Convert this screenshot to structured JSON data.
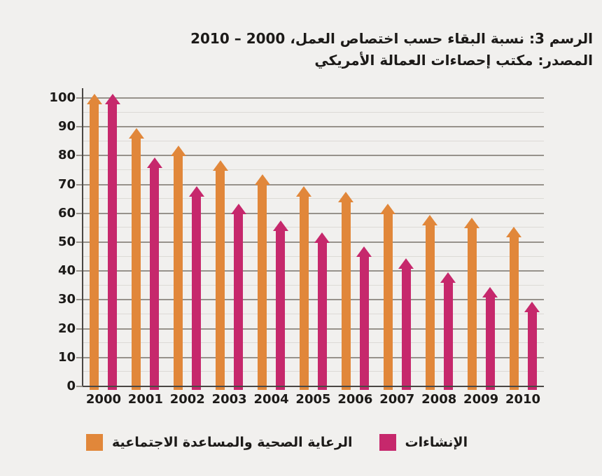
{
  "title": "الرسم 3: نسبة البقاء حسب اختصاص العمل، 2000 – 2010",
  "source": "المصدر: مكتب إحصاءات العمالة الأمريكي",
  "chart_data": {
    "type": "bar",
    "bar_style": "arrow",
    "title": "الرسم 3: نسبة البقاء حسب اختصاص العمل، 2000 – 2010",
    "subtitle": "المصدر: مكتب إحصاءات العمالة الأمريكي",
    "categories": [
      "2000",
      "2001",
      "2002",
      "2003",
      "2004",
      "2005",
      "2006",
      "2007",
      "2008",
      "2009",
      "2010"
    ],
    "series": [
      {
        "name": "الرعاية الصحية والمساعدة الاجتماعية",
        "color": "#E1873A",
        "values": [
          100,
          88,
          82,
          77,
          72,
          68,
          66,
          62,
          58,
          57,
          54
        ]
      },
      {
        "name": "الإنشاءات",
        "color": "#C6286C",
        "values": [
          100,
          78,
          68,
          62,
          56,
          52,
          47,
          43,
          38,
          33,
          28
        ]
      }
    ],
    "xlabel": "",
    "ylabel": "",
    "ylim": [
      0,
      100
    ],
    "yticks": [
      100,
      90,
      80,
      70,
      60,
      50,
      40,
      30,
      20,
      10,
      0
    ],
    "ytick_step": 10,
    "minor_grid_step": 5,
    "grid": true,
    "legend_position": "bottom"
  },
  "colors": {
    "background": "#F1F0EE",
    "grid_major": "#97928B",
    "grid_minor": "#DCDAD6",
    "axis": "#4A4744",
    "text": "#1C1A18",
    "series_healthcare": "#E1873A",
    "series_construction": "#C6286C"
  }
}
